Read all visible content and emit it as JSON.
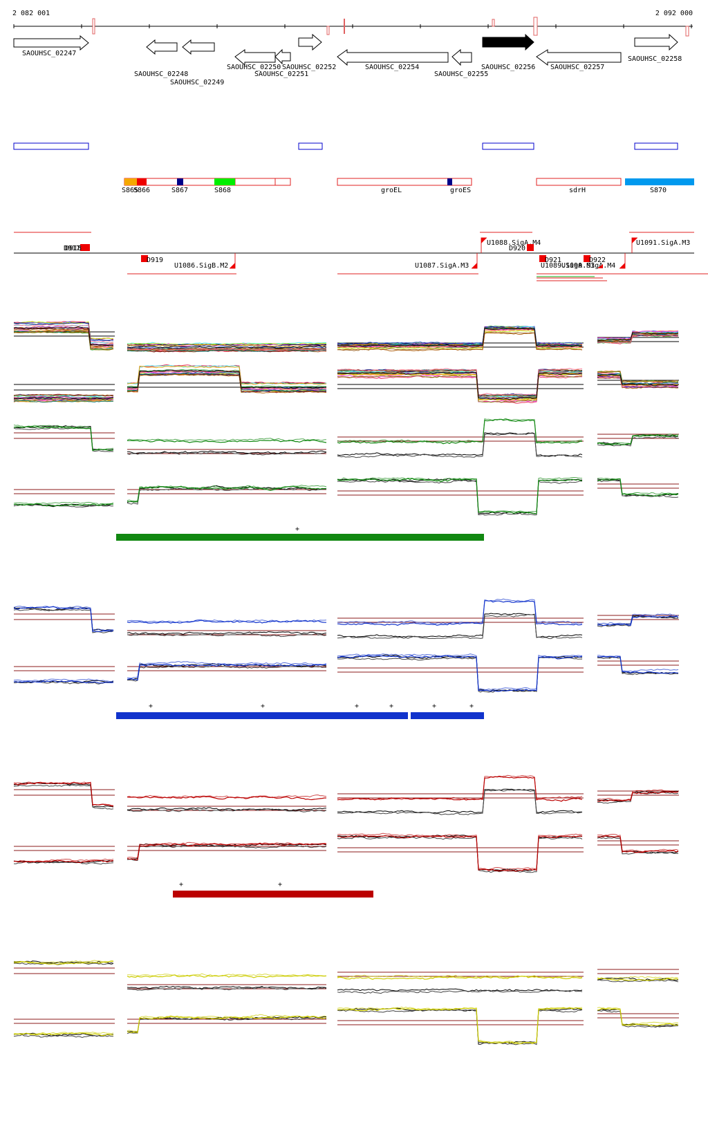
{
  "coords": {
    "start": "2 082 001",
    "end": "2 092 000"
  },
  "colors": {
    "green": "#118811",
    "blue": "#1133cc",
    "red": "#bb0000",
    "yellow": "#cccc00",
    "orange": "#f5a800",
    "brightgreen": "#00ee00",
    "navy": "#000088",
    "sky": "#0099ee",
    "threshold": "#8b1a1a"
  },
  "genes": [
    {
      "label": "SAOUHSC_02247",
      "strand": "+"
    },
    {
      "label": "SAOUHSC_02248",
      "strand": "-"
    },
    {
      "label": "SAOUHSC_02249",
      "strand": "-"
    },
    {
      "label": "SAOUHSC_02250",
      "strand": "-"
    },
    {
      "label": "SAOUHSC_02251",
      "strand": "-"
    },
    {
      "label": "SAOUHSC_02252",
      "strand": "+"
    },
    {
      "label": "SAOUHSC_02254",
      "strand": "-"
    },
    {
      "label": "SAOUHSC_02255",
      "strand": "-"
    },
    {
      "label": "SAOUHSC_02256",
      "strand": "+",
      "highlight": true
    },
    {
      "label": "SAOUHSC_02257",
      "strand": "-"
    },
    {
      "label": "SAOUHSC_02258",
      "strand": "+"
    }
  ],
  "segments": [
    {
      "label": "S865"
    },
    {
      "label": "S866"
    },
    {
      "label": "S867"
    },
    {
      "label": "S868"
    },
    {
      "label": "groEL"
    },
    {
      "label": "groES"
    },
    {
      "label": "sdrH"
    },
    {
      "label": "S870"
    }
  ],
  "features": [
    {
      "label": "D917"
    },
    {
      "label": "D918"
    },
    {
      "label": "D919"
    },
    {
      "label": "U1086.SigB.M2"
    },
    {
      "label": "U1087.SigA.M3"
    },
    {
      "label": "U1088.SigA.M4"
    },
    {
      "label": "D920"
    },
    {
      "label": "D921"
    },
    {
      "label": "U1089.SigA.M3"
    },
    {
      "label": "U1090.SigA.M4"
    },
    {
      "label": "D922"
    },
    {
      "label": "U1091.SigA.M3"
    }
  ],
  "plus_sign": "+"
}
